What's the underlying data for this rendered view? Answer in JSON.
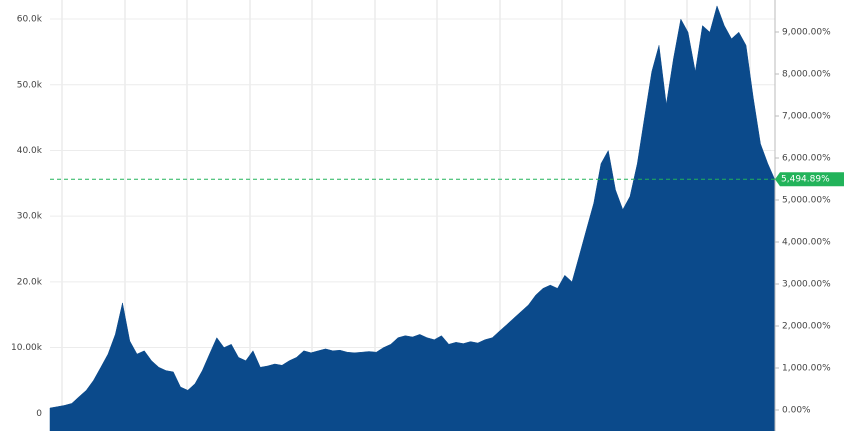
{
  "chart_data": {
    "type": "area",
    "color": "#0b4a8b",
    "values": [
      800,
      1000,
      1200,
      1500,
      2500,
      3500,
      5000,
      7000,
      9000,
      12000,
      16800,
      11000,
      9000,
      9500,
      8000,
      7000,
      6500,
      6300,
      4000,
      3500,
      4500,
      6500,
      9000,
      11500,
      10000,
      10500,
      8500,
      8000,
      9500,
      7000,
      7200,
      7500,
      7300,
      8000,
      8500,
      9500,
      9200,
      9500,
      9800,
      9500,
      9600,
      9300,
      9200,
      9300,
      9400,
      9300,
      10000,
      10500,
      11500,
      11800,
      11600,
      12000,
      11500,
      11200,
      11800,
      10500,
      10800,
      10600,
      10900,
      10700,
      11200,
      11500,
      12500,
      13500,
      14500,
      15500,
      16500,
      18000,
      19000,
      19500,
      19000,
      21000,
      20000,
      24000,
      28000,
      32000,
      38000,
      40000,
      34000,
      31000,
      33000,
      38000,
      45000,
      52000,
      56000,
      47000,
      54000,
      60000,
      58000,
      52000,
      59000,
      58000,
      62000,
      59000,
      57000,
      58000,
      56000,
      48000,
      41000,
      38000,
      35500
    ],
    "ylim": [
      -2700,
      62900
    ],
    "yticks": [
      0,
      {
        "value": 10000,
        "label": "10.00k"
      },
      {
        "value": 20000,
        "label": "20.0k"
      },
      {
        "value": 30000,
        "label": "30.0k"
      },
      {
        "value": 40000,
        "label": "40.0k"
      },
      {
        "value": 50000,
        "label": "50.0k"
      },
      {
        "value": 60000,
        "label": "60.0k"
      }
    ],
    "y2lim": [
      -500,
      9762
    ],
    "y2ticks": [
      {
        "value": 0,
        "label": "0.00%"
      },
      {
        "value": 1000,
        "label": "1,000.00%"
      },
      {
        "value": 2000,
        "label": "2,000.00%"
      },
      {
        "value": 3000,
        "label": "3,000.00%"
      },
      {
        "value": 4000,
        "label": "4,000.00%"
      },
      {
        "value": 5000,
        "label": "5,000.00%"
      },
      {
        "value": 6000,
        "label": "6,000.00%"
      },
      {
        "value": 7000,
        "label": "7,000.00%"
      },
      {
        "value": 8000,
        "label": "8,000.00%"
      },
      {
        "value": 9000,
        "label": "9,000.00%"
      }
    ],
    "current": {
      "value": 5494.89,
      "label": "5,494.89%",
      "color": "#22b35a"
    },
    "grid": true
  }
}
